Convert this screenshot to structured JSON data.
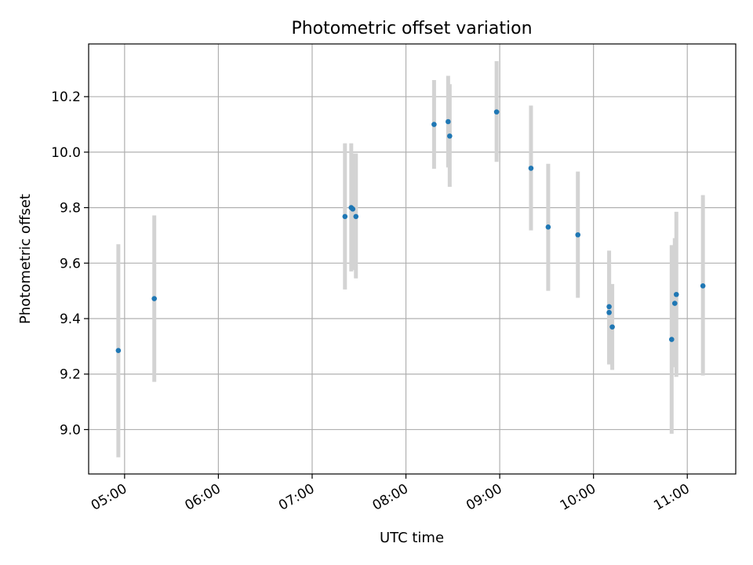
{
  "chart_data": {
    "type": "scatter",
    "title": "Photometric offset variation",
    "xlabel": "UTC time",
    "ylabel": "Photometric offset",
    "x_axis": {
      "kind": "time",
      "range": [
        "04:37",
        "11:31"
      ],
      "ticks": [
        "05:00",
        "06:00",
        "07:00",
        "08:00",
        "09:00",
        "10:00",
        "11:00"
      ]
    },
    "y_axis": {
      "range": [
        8.84,
        10.39
      ],
      "ticks": [
        9.0,
        9.2,
        9.4,
        9.6,
        9.8,
        10.0,
        10.2
      ],
      "tick_labels": [
        "9.0",
        "9.2",
        "9.4",
        "9.6",
        "9.8",
        "10.0",
        "10.2"
      ]
    },
    "grid": true,
    "marker_color": "#1f77b4",
    "errorbar_color": "#d3d3d3",
    "points": [
      {
        "time": "04:56",
        "y": 9.285,
        "lo": 8.9,
        "hi": 9.668
      },
      {
        "time": "05:19",
        "y": 9.472,
        "lo": 9.172,
        "hi": 9.772
      },
      {
        "time": "07:21",
        "y": 9.768,
        "lo": 9.505,
        "hi": 10.032
      },
      {
        "time": "07:25",
        "y": 9.8,
        "lo": 9.57,
        "hi": 10.032
      },
      {
        "time": "07:26",
        "y": 9.795,
        "lo": 9.575,
        "hi": 9.995
      },
      {
        "time": "07:28",
        "y": 9.768,
        "lo": 9.545,
        "hi": 9.995
      },
      {
        "time": "08:18",
        "y": 10.1,
        "lo": 9.94,
        "hi": 10.26
      },
      {
        "time": "08:27",
        "y": 10.11,
        "lo": 9.945,
        "hi": 10.275
      },
      {
        "time": "08:28",
        "y": 10.058,
        "lo": 9.875,
        "hi": 10.245
      },
      {
        "time": "08:58",
        "y": 10.145,
        "lo": 9.965,
        "hi": 10.328
      },
      {
        "time": "09:20",
        "y": 9.942,
        "lo": 9.718,
        "hi": 10.168
      },
      {
        "time": "09:31",
        "y": 9.73,
        "lo": 9.5,
        "hi": 9.958
      },
      {
        "time": "09:50",
        "y": 9.702,
        "lo": 9.475,
        "hi": 9.93
      },
      {
        "time": "10:10",
        "y": 9.443,
        "lo": 9.235,
        "hi": 9.645
      },
      {
        "time": "10:10",
        "y": 9.422,
        "lo": 9.235,
        "hi": 9.61
      },
      {
        "time": "10:12",
        "y": 9.37,
        "lo": 9.215,
        "hi": 9.525
      },
      {
        "time": "10:50",
        "y": 9.325,
        "lo": 8.985,
        "hi": 9.665
      },
      {
        "time": "10:52",
        "y": 9.455,
        "lo": 9.225,
        "hi": 9.69
      },
      {
        "time": "10:53",
        "y": 9.487,
        "lo": 9.19,
        "hi": 9.785
      },
      {
        "time": "11:10",
        "y": 9.518,
        "lo": 9.195,
        "hi": 9.845
      }
    ]
  }
}
